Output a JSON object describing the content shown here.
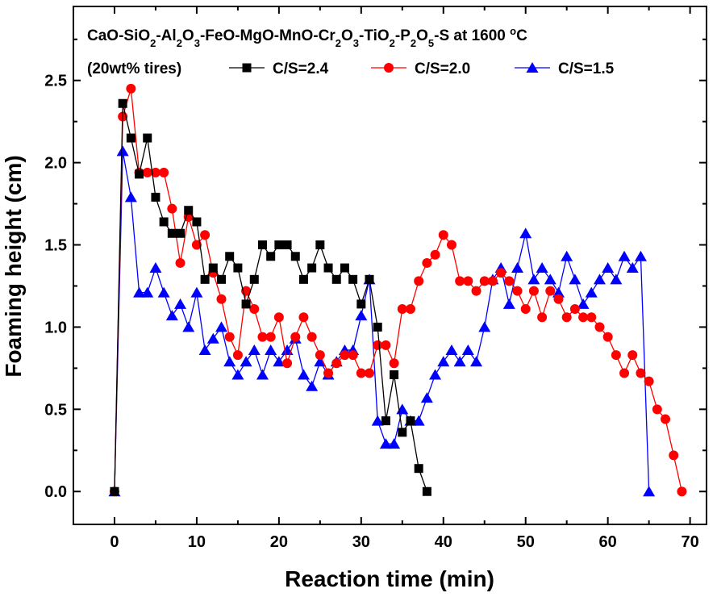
{
  "chart_data": {
    "type": "line",
    "title_line1": {
      "parts": [
        {
          "t": "CaO-SiO",
          "s": ""
        },
        {
          "t": "2",
          "s": "sub"
        },
        {
          "t": "-Al",
          "s": ""
        },
        {
          "t": "2",
          "s": "sub"
        },
        {
          "t": "O",
          "s": ""
        },
        {
          "t": "3",
          "s": "sub"
        },
        {
          "t": "-FeO-MgO-MnO-Cr",
          "s": ""
        },
        {
          "t": "2",
          "s": "sub"
        },
        {
          "t": "O",
          "s": ""
        },
        {
          "t": "3",
          "s": "sub"
        },
        {
          "t": "-TiO",
          "s": ""
        },
        {
          "t": "2",
          "s": "sub"
        },
        {
          "t": "-P",
          "s": ""
        },
        {
          "t": "2",
          "s": "sub"
        },
        {
          "t": "O",
          "s": ""
        },
        {
          "t": "5",
          "s": "sub"
        },
        {
          "t": "-S at 1600 ",
          "s": ""
        },
        {
          "t": "o",
          "s": "sup"
        },
        {
          "t": "C",
          "s": ""
        }
      ]
    },
    "title_line2": "(20wt% tires)",
    "xlabel": "Reaction time (min)",
    "ylabel": "Foaming height (cm)",
    "xlim": [
      -5,
      72
    ],
    "ylim": [
      -0.2,
      2.95
    ],
    "xticks": [
      0,
      10,
      20,
      30,
      40,
      50,
      60,
      70
    ],
    "xtick_labels": [
      "0",
      "10",
      "20",
      "30",
      "40",
      "50",
      "60",
      "70"
    ],
    "yticks": [
      0.0,
      0.5,
      1.0,
      1.5,
      2.0,
      2.5
    ],
    "ytick_labels": [
      "0.0",
      "0.5",
      "1.0",
      "1.5",
      "2.0",
      "2.5"
    ],
    "grid": false,
    "legend_position": "top, inline with title",
    "series": [
      {
        "name": "C/S=2.4",
        "color": "#000000",
        "marker": "square",
        "x": [
          0,
          1,
          2,
          3,
          4,
          5,
          6,
          7,
          8,
          9,
          10,
          11,
          12,
          13,
          14,
          15,
          16,
          17,
          18,
          19,
          20,
          21,
          22,
          23,
          24,
          25,
          26,
          27,
          28,
          29,
          30,
          31,
          32,
          33,
          34,
          35,
          36,
          37,
          38
        ],
        "y": [
          0,
          2.36,
          2.15,
          1.93,
          2.15,
          1.79,
          1.64,
          1.57,
          1.57,
          1.71,
          1.64,
          1.29,
          1.36,
          1.29,
          1.43,
          1.36,
          1.14,
          1.29,
          1.5,
          1.43,
          1.5,
          1.5,
          1.43,
          1.29,
          1.36,
          1.5,
          1.36,
          1.29,
          1.36,
          1.29,
          1.14,
          1.29,
          1.0,
          0.43,
          0.71,
          0.36,
          0.43,
          0.14,
          0
        ]
      },
      {
        "name": "C/S=2.0",
        "color": "#ff0000",
        "marker": "circle",
        "x": [
          0,
          1,
          2,
          3,
          4,
          5,
          6,
          7,
          8,
          9,
          10,
          11,
          12,
          13,
          14,
          15,
          16,
          17,
          18,
          19,
          20,
          21,
          22,
          23,
          24,
          25,
          26,
          27,
          28,
          29,
          30,
          31,
          32,
          33,
          34,
          35,
          36,
          37,
          38,
          39,
          40,
          41,
          42,
          43,
          44,
          45,
          46,
          47,
          48,
          49,
          50,
          51,
          52,
          53,
          54,
          55,
          56,
          57,
          58,
          59,
          60,
          61,
          62,
          63,
          64,
          65,
          66,
          67,
          68,
          69
        ],
        "y": [
          0,
          2.28,
          2.45,
          1.94,
          1.94,
          1.94,
          1.94,
          1.72,
          1.39,
          1.67,
          1.5,
          1.56,
          1.33,
          1.17,
          0.94,
          0.83,
          1.22,
          1.11,
          0.94,
          0.94,
          1.06,
          0.78,
          0.94,
          1.06,
          0.94,
          0.83,
          0.72,
          0.78,
          0.83,
          0.83,
          0.72,
          0.72,
          0.89,
          0.89,
          0.78,
          1.11,
          1.11,
          1.28,
          1.39,
          1.44,
          1.56,
          1.5,
          1.28,
          1.28,
          1.22,
          1.28,
          1.28,
          1.33,
          1.28,
          1.22,
          1.11,
          1.22,
          1.06,
          1.22,
          1.17,
          1.06,
          1.11,
          1.06,
          1.06,
          1.0,
          0.94,
          0.83,
          0.72,
          0.83,
          0.72,
          0.67,
          0.5,
          0.44,
          0.22,
          0
        ]
      },
      {
        "name": "C/S=1.5",
        "color": "#0000ff",
        "marker": "triangle",
        "x": [
          0,
          1,
          2,
          3,
          4,
          5,
          6,
          7,
          8,
          9,
          10,
          11,
          12,
          13,
          14,
          15,
          16,
          17,
          18,
          19,
          20,
          21,
          22,
          23,
          24,
          25,
          26,
          27,
          28,
          29,
          30,
          31,
          32,
          33,
          34,
          35,
          36,
          37,
          38,
          39,
          40,
          41,
          42,
          43,
          44,
          45,
          46,
          47,
          48,
          49,
          50,
          51,
          52,
          53,
          54,
          55,
          56,
          57,
          58,
          59,
          60,
          61,
          62,
          63,
          64,
          65
        ],
        "y": [
          0,
          2.07,
          1.79,
          1.21,
          1.21,
          1.36,
          1.21,
          1.07,
          1.14,
          1.0,
          1.21,
          0.86,
          0.93,
          1.0,
          0.79,
          0.71,
          0.79,
          0.86,
          0.71,
          0.86,
          0.79,
          0.86,
          0.93,
          0.71,
          0.64,
          0.79,
          0.71,
          0.79,
          0.86,
          0.86,
          1.07,
          1.29,
          0.43,
          0.29,
          0.29,
          0.5,
          0.43,
          0.43,
          0.57,
          0.71,
          0.79,
          0.86,
          0.79,
          0.86,
          0.79,
          1.0,
          1.29,
          1.36,
          1.14,
          1.36,
          1.57,
          1.29,
          1.36,
          1.29,
          1.21,
          1.43,
          1.29,
          1.14,
          1.21,
          1.29,
          1.36,
          1.29,
          1.43,
          1.36,
          1.43,
          0
        ]
      }
    ]
  }
}
